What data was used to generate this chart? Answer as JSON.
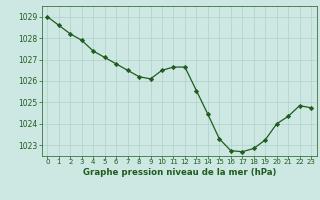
{
  "x": [
    0,
    1,
    2,
    3,
    4,
    5,
    6,
    7,
    8,
    9,
    10,
    11,
    12,
    13,
    14,
    15,
    16,
    17,
    18,
    19,
    20,
    21,
    22,
    23
  ],
  "y": [
    1029.0,
    1028.6,
    1028.2,
    1027.9,
    1027.4,
    1027.1,
    1026.8,
    1026.5,
    1026.2,
    1026.1,
    1026.5,
    1026.65,
    1026.65,
    1025.55,
    1024.45,
    1023.3,
    1022.75,
    1022.7,
    1022.85,
    1023.25,
    1024.0,
    1024.35,
    1024.85,
    1024.75
  ],
  "line_color": "#1f5c1f",
  "marker_color": "#1f5c1f",
  "bg_color": "#cde8e2",
  "grid_color": "#b0d0ca",
  "xlabel": "Graphe pression niveau de la mer (hPa)",
  "xlabel_color": "#1f5c1f",
  "tick_color": "#1f5c1f",
  "ylim": [
    1022.5,
    1029.5
  ],
  "yticks": [
    1023,
    1024,
    1025,
    1026,
    1027,
    1028,
    1029
  ],
  "xticks": [
    0,
    1,
    2,
    3,
    4,
    5,
    6,
    7,
    8,
    9,
    10,
    11,
    12,
    13,
    14,
    15,
    16,
    17,
    18,
    19,
    20,
    21,
    22,
    23
  ],
  "ytick_fontsize": 5.5,
  "xtick_fontsize": 5.0,
  "xlabel_fontsize": 6.2,
  "linewidth": 0.9,
  "markersize": 2.2
}
